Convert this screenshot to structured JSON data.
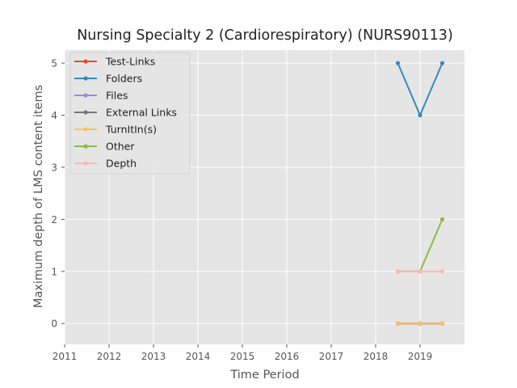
{
  "chart_data": {
    "type": "line",
    "title": "Nursing Specialty 2 (Cardiorespiratory) (NURS90113)",
    "xlabel": "Time Period",
    "ylabel": "Maximum depth of LMS content items",
    "xlim": [
      2011,
      2020
    ],
    "ylim": [
      -0.4,
      5.25
    ],
    "x_ticks": [
      "2011",
      "2012",
      "2013",
      "2014",
      "2015",
      "2016",
      "2017",
      "2018",
      "2019"
    ],
    "y_ticks": [
      "0",
      "1",
      "2",
      "3",
      "4",
      "5"
    ],
    "grid": true,
    "legend_position": "top-left",
    "x": [
      2018.5,
      2019.0,
      2019.5
    ],
    "series": [
      {
        "name": "Test-Links",
        "color": "#E24A33",
        "values": [
          0,
          0,
          0
        ]
      },
      {
        "name": "Folders",
        "color": "#348ABD",
        "values": [
          5,
          4,
          5
        ]
      },
      {
        "name": "Files",
        "color": "#988ED5",
        "values": [
          0,
          0,
          0
        ]
      },
      {
        "name": "External Links",
        "color": "#777777",
        "values": [
          0,
          0,
          0
        ]
      },
      {
        "name": "TurnItIn(s)",
        "color": "#FBC15E",
        "values": [
          0,
          0,
          0
        ]
      },
      {
        "name": "Other",
        "color": "#8EBA42",
        "values": [
          1,
          1,
          2
        ]
      },
      {
        "name": "Depth",
        "color": "#FFB5B8",
        "values": [
          1,
          1,
          1
        ]
      }
    ]
  }
}
